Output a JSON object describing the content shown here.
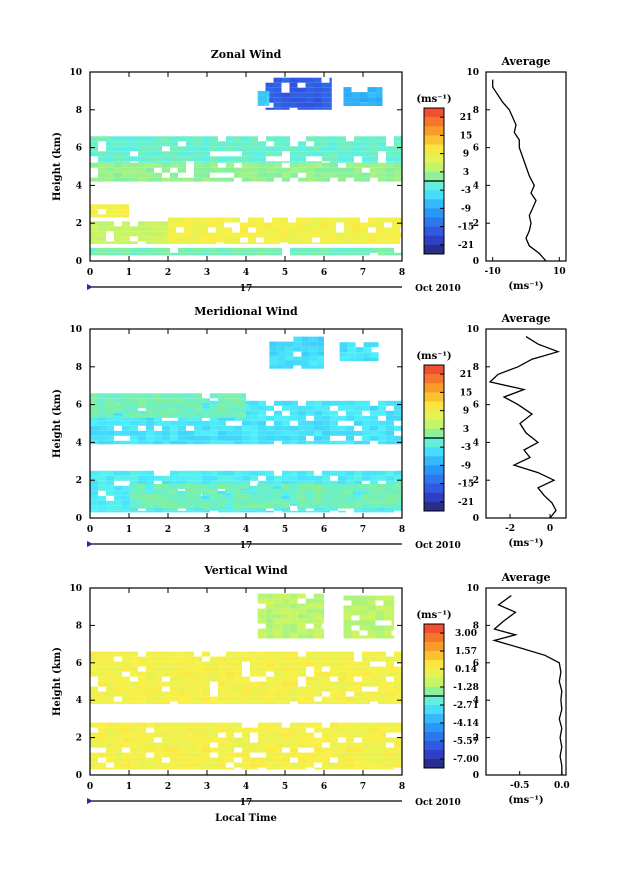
{
  "panels": [
    {
      "id": "zonal",
      "title": "Zonal Wind",
      "ylabel": "Height (km)",
      "avg_title": "Average",
      "cbar_unit": "(ms⁻¹)",
      "avg_xlabel": "(ms⁻¹)",
      "date_label": "17",
      "date_right": "Oct 2010",
      "xlabel": "",
      "cbar_ticks": [
        "21",
        "15",
        "9",
        "3",
        "-3",
        "-9",
        "-15",
        "-21"
      ],
      "avg_xticks": [
        "-10",
        "10"
      ],
      "avg_xlim": [
        -12,
        12
      ],
      "avg_profile": [
        [
          6,
          0
        ],
        [
          4,
          0.4
        ],
        [
          1,
          0.8
        ],
        [
          0,
          1.2
        ],
        [
          1,
          1.6
        ],
        [
          1.5,
          2.0
        ],
        [
          1,
          2.4
        ],
        [
          2,
          2.8
        ],
        [
          3,
          3.2
        ],
        [
          1.5,
          3.6
        ],
        [
          2.5,
          4.0
        ],
        [
          1,
          4.5
        ],
        [
          0,
          5.0
        ],
        [
          -1,
          5.5
        ],
        [
          -2,
          6.0
        ],
        [
          -2,
          6.4
        ],
        [
          -3.5,
          6.8
        ],
        [
          -3,
          7.2
        ],
        [
          -4,
          7.6
        ],
        [
          -5,
          8.0
        ],
        [
          -7,
          8.4
        ],
        [
          -8.5,
          8.8
        ],
        [
          -10,
          9.2
        ],
        [
          -10,
          9.6
        ]
      ]
    },
    {
      "id": "meridional",
      "title": "Meridional Wind",
      "ylabel": "Height (km)",
      "avg_title": "Average",
      "cbar_unit": "(ms⁻¹)",
      "avg_xlabel": "(ms⁻¹)",
      "date_label": "17",
      "date_right": "Oct 2010",
      "xlabel": "",
      "cbar_ticks": [
        "21",
        "15",
        "9",
        "3",
        "-3",
        "-9",
        "-15",
        "-21"
      ],
      "avg_xticks": [
        "-2",
        "0"
      ],
      "avg_xlim": [
        -3.2,
        0.8
      ],
      "avg_profile": [
        [
          0,
          0
        ],
        [
          0.3,
          0.4
        ],
        [
          0.1,
          0.8
        ],
        [
          -0.3,
          1.2
        ],
        [
          -0.6,
          1.6
        ],
        [
          0.2,
          2.0
        ],
        [
          -0.6,
          2.4
        ],
        [
          -1.8,
          2.8
        ],
        [
          -1,
          3.2
        ],
        [
          -1.3,
          3.6
        ],
        [
          -0.6,
          4.0
        ],
        [
          -1.2,
          4.5
        ],
        [
          -1.5,
          5.0
        ],
        [
          -0.9,
          5.5
        ],
        [
          -1.6,
          6.0
        ],
        [
          -2.3,
          6.4
        ],
        [
          -1.3,
          6.8
        ],
        [
          -3,
          7.2
        ],
        [
          -2.6,
          7.6
        ],
        [
          -1.6,
          8.0
        ],
        [
          -0.9,
          8.4
        ],
        [
          0.4,
          8.8
        ],
        [
          -0.6,
          9.2
        ],
        [
          -1.2,
          9.6
        ]
      ]
    },
    {
      "id": "vertical",
      "title": "Vertical Wind",
      "ylabel": "Height (km)",
      "avg_title": "Average",
      "cbar_unit": "(ms⁻¹)",
      "avg_xlabel": "(ms⁻¹)",
      "date_label": "17",
      "date_right": "Oct 2010",
      "xlabel": "Local Time",
      "cbar_ticks": [
        "3.00",
        "1.57",
        "0.14",
        "-1.28",
        "-2.71",
        "-4.14",
        "-5.57",
        "-7.00"
      ],
      "avg_xticks": [
        "-0.5",
        "0.0"
      ],
      "avg_xlim": [
        -0.9,
        0.05
      ],
      "avg_profile": [
        [
          0,
          0
        ],
        [
          0,
          0.5
        ],
        [
          -0.02,
          1.0
        ],
        [
          0,
          1.5
        ],
        [
          -0.02,
          2.0
        ],
        [
          0,
          2.5
        ],
        [
          -0.03,
          3.0
        ],
        [
          0,
          3.5
        ],
        [
          -0.01,
          4.0
        ],
        [
          0,
          4.5
        ],
        [
          -0.03,
          5.0
        ],
        [
          -0.01,
          5.5
        ],
        [
          -0.03,
          6.0
        ],
        [
          -0.2,
          6.4
        ],
        [
          -0.5,
          6.8
        ],
        [
          -0.8,
          7.2
        ],
        [
          -0.55,
          7.5
        ],
        [
          -0.8,
          7.8
        ],
        [
          -0.7,
          8.2
        ],
        [
          -0.55,
          8.7
        ],
        [
          -0.75,
          9.1
        ],
        [
          -0.6,
          9.6
        ]
      ]
    }
  ],
  "chart_data": [
    {
      "type": "heatmap",
      "title": "Zonal Wind",
      "xlabel": "",
      "ylabel": "Height (km)",
      "x_ticks": [
        "0",
        "1",
        "2",
        "3",
        "4",
        "5",
        "6",
        "7",
        "8"
      ],
      "y_ticks": [
        "0",
        "2",
        "4",
        "6",
        "8",
        "10"
      ],
      "xlim": [
        0,
        8
      ],
      "ylim": [
        0,
        10
      ],
      "colorbar": {
        "unit": "(ms⁻¹)",
        "ticks": [
          21,
          15,
          9,
          3,
          -3,
          -9,
          -15,
          -21
        ],
        "range": [
          -24,
          24
        ]
      },
      "regions": [
        {
          "x": [
            0.0,
            8.0
          ],
          "y": [
            0.3,
            0.7
          ],
          "value": 0
        },
        {
          "x": [
            0.0,
            2.0
          ],
          "y": [
            0.9,
            2.1
          ],
          "value": 5
        },
        {
          "x": [
            2.0,
            8.0
          ],
          "y": [
            0.9,
            2.3
          ],
          "value": 9
        },
        {
          "x": [
            0.0,
            1.0
          ],
          "y": [
            2.3,
            3.0
          ],
          "value": 9
        },
        {
          "x": [
            0.0,
            8.0
          ],
          "y": [
            4.2,
            5.2
          ],
          "value": 2
        },
        {
          "x": [
            0.0,
            8.0
          ],
          "y": [
            5.2,
            6.6
          ],
          "value": -1
        },
        {
          "x": [
            4.5,
            6.2
          ],
          "y": [
            8.0,
            9.7
          ],
          "value": -16
        },
        {
          "x": [
            4.3,
            4.6
          ],
          "y": [
            8.2,
            9.0
          ],
          "value": -6
        },
        {
          "x": [
            6.5,
            7.5
          ],
          "y": [
            8.2,
            9.2
          ],
          "value": -8
        }
      ]
    },
    {
      "type": "heatmap",
      "title": "Meridional Wind",
      "xlabel": "",
      "ylabel": "Height (km)",
      "x_ticks": [
        "0",
        "1",
        "2",
        "3",
        "4",
        "5",
        "6",
        "7",
        "8"
      ],
      "y_ticks": [
        "0",
        "2",
        "4",
        "6",
        "8",
        "10"
      ],
      "xlim": [
        0,
        8
      ],
      "ylim": [
        0,
        10
      ],
      "colorbar": {
        "unit": "(ms⁻¹)",
        "ticks": [
          21,
          15,
          9,
          3,
          -3,
          -9,
          -15,
          -21
        ],
        "range": [
          -24,
          24
        ]
      },
      "regions": [
        {
          "x": [
            0.0,
            8.0
          ],
          "y": [
            0.3,
            2.5
          ],
          "value": -3
        },
        {
          "x": [
            1.0,
            8.0
          ],
          "y": [
            0.5,
            1.8
          ],
          "value": 0
        },
        {
          "x": [
            0.0,
            8.0
          ],
          "y": [
            3.9,
            6.2
          ],
          "value": -4
        },
        {
          "x": [
            0.0,
            4.0
          ],
          "y": [
            5.3,
            6.6
          ],
          "value": 0
        },
        {
          "x": [
            4.6,
            6.0
          ],
          "y": [
            8.1,
            9.6
          ],
          "value": -5
        },
        {
          "x": [
            6.4,
            7.4
          ],
          "y": [
            8.3,
            9.3
          ],
          "value": -4
        },
        {
          "x": [
            4.6,
            6.0
          ],
          "y": [
            7.9,
            8.6
          ],
          "value": -4
        }
      ]
    },
    {
      "type": "heatmap",
      "title": "Vertical Wind",
      "xlabel": "Local Time",
      "ylabel": "Height (km)",
      "x_ticks": [
        "0",
        "1",
        "2",
        "3",
        "4",
        "5",
        "6",
        "7",
        "8"
      ],
      "y_ticks": [
        "0",
        "2",
        "4",
        "6",
        "8",
        "10"
      ],
      "xlim": [
        0,
        8
      ],
      "ylim": [
        0,
        10
      ],
      "colorbar": {
        "unit": "(ms⁻¹)",
        "ticks": [
          3.0,
          1.57,
          0.14,
          -1.28,
          -2.71,
          -4.14,
          -5.57,
          -7.0
        ],
        "range": [
          -7.7,
          3.7
        ]
      },
      "regions": [
        {
          "x": [
            0.0,
            8.0
          ],
          "y": [
            0.3,
            2.8
          ],
          "value": 0.14
        },
        {
          "x": [
            0.0,
            8.0
          ],
          "y": [
            3.8,
            6.6
          ],
          "value": 0.14
        },
        {
          "x": [
            4.3,
            6.0
          ],
          "y": [
            7.3,
            9.7
          ],
          "value": -1.0
        },
        {
          "x": [
            6.5,
            7.8
          ],
          "y": [
            7.3,
            9.6
          ],
          "value": -1.0
        }
      ]
    }
  ]
}
